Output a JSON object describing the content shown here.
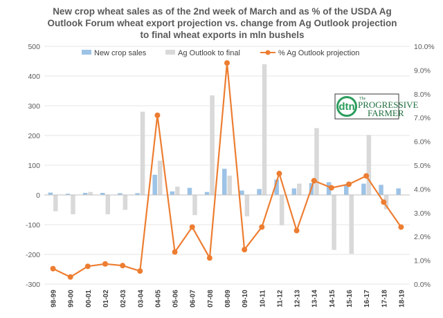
{
  "colors": {
    "sales": "#9dc3e6",
    "outlook": "#d9d9d9",
    "pct": "#ed7d31",
    "grid": "#e6e6e6",
    "text": "#595959",
    "logo_green": "#2a9d5c"
  },
  "logo": {
    "dtn": "dtn",
    "the": "The",
    "line1": "PROGRESSIVE",
    "line2": "FARMER"
  },
  "chart_data": {
    "type": "bar",
    "title_lines": [
      "New crop wheat sales as of the 2nd week of March and as  % of the USDA Ag",
      "Outlook Forum wheat export projection vs. change from Ag Outlook projection",
      "to final wheat exports in mln bushels"
    ],
    "legend_position": "top",
    "grid": true,
    "categories": [
      "98-99",
      "99-00",
      "00-01",
      "01-02",
      "02-03",
      "03-04",
      "04-05",
      "05-06",
      "06-07",
      "07-08",
      "08-09",
      "09-10",
      "10-11",
      "11-12",
      "12-13",
      "13-14",
      "14-15",
      "15-16",
      "16-17",
      "17-18",
      "18-19"
    ],
    "y_left": {
      "ylim": [
        -300,
        500
      ],
      "ticks": [
        -300,
        -200,
        -100,
        0,
        100,
        200,
        300,
        400,
        500
      ]
    },
    "y_right": {
      "ylim": [
        0,
        10
      ],
      "ticks": [
        0,
        1,
        2,
        3,
        4,
        5,
        6,
        7,
        8,
        9,
        10
      ],
      "tick_labels": [
        "0.0%",
        "1.0%",
        "2.0%",
        "3.0%",
        "4.0%",
        "5.0%",
        "6.0%",
        "7.0%",
        "8.0%",
        "9.0%",
        "10.0%"
      ]
    },
    "series": [
      {
        "name": "New crop sales",
        "type": "bar",
        "axis": "left",
        "values": [
          8,
          4,
          7,
          7,
          6,
          6,
          68,
          12,
          24,
          10,
          88,
          15,
          20,
          52,
          22,
          40,
          43,
          33,
          38,
          34,
          22
        ]
      },
      {
        "name": "Ag Outlook to final",
        "type": "bar",
        "axis": "left",
        "values": [
          -55,
          -65,
          10,
          -65,
          -50,
          280,
          115,
          28,
          -68,
          335,
          65,
          -72,
          440,
          -102,
          38,
          225,
          -185,
          -198,
          202,
          -48,
          null
        ]
      },
      {
        "name": "% Ag Outlook projection",
        "type": "line",
        "axis": "right",
        "values": [
          0.65,
          0.3,
          0.75,
          0.85,
          0.78,
          0.55,
          7.1,
          1.35,
          2.4,
          1.1,
          9.3,
          1.45,
          2.4,
          4.65,
          2.25,
          4.35,
          4.05,
          4.2,
          4.55,
          3.45,
          2.4
        ]
      }
    ]
  }
}
